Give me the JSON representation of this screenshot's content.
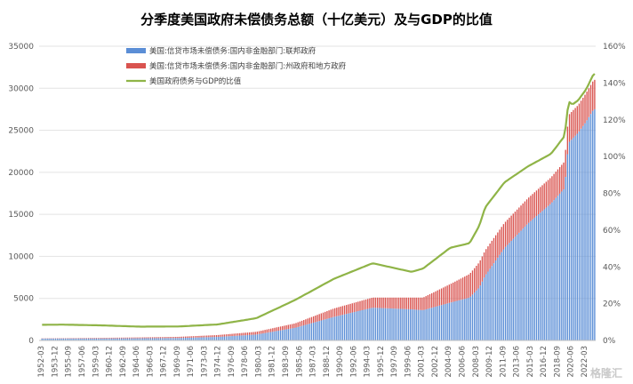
{
  "chart_data": {
    "type": "bar+line",
    "title": "分季度美国政府未偿债务总额（十亿美元）及与GDP的比值",
    "y_left": {
      "min": 0,
      "max": 35000,
      "ticks": [
        "0",
        "5000",
        "10000",
        "15000",
        "20000",
        "25000",
        "30000",
        "35000"
      ]
    },
    "y_right": {
      "min": 0,
      "max": 160,
      "unit": "%",
      "ticks": [
        "0%",
        "20%",
        "40%",
        "60%",
        "80%",
        "100%",
        "120%",
        "140%",
        "160%"
      ]
    },
    "x_tick_labels": [
      "1952-03",
      "1953-12",
      "1955-09",
      "1957-06",
      "1959-03",
      "1960-12",
      "1962-09",
      "1964-06",
      "1966-03",
      "1967-12",
      "1969-09",
      "1971-06",
      "1973-03",
      "1974-12",
      "1976-09",
      "1978-06",
      "1980-03",
      "1981-12",
      "1983-09",
      "1985-06",
      "1987-03",
      "1988-12",
      "1990-09",
      "1992-06",
      "1994-03",
      "1995-12",
      "1997-09",
      "1999-06",
      "2001-03",
      "2002-12",
      "2004-09",
      "2006-06",
      "2008-03",
      "2009-12",
      "2011-09",
      "2013-06",
      "2015-03",
      "2016-12",
      "2018-09",
      "2020-06",
      "2022-03"
    ],
    "legend": [
      {
        "label": "美国:信贷市场未偿债务:国内非金融部门:联邦政府",
        "color": "#5b8ed6",
        "kind": "bar"
      },
      {
        "label": "美国:信贷市场未偿债务:国内非金融部门:州政府和地方政府",
        "color": "#d9534f",
        "kind": "bar"
      },
      {
        "label": "美国政府债务与GDP的比值",
        "color": "#8fb447",
        "kind": "line"
      }
    ],
    "legend_position": "top-left",
    "anchors": {
      "x": [
        1952.25,
        1955,
        1960,
        1965,
        1970,
        1975,
        1980,
        1985,
        1990,
        1995,
        2000,
        2001.5,
        2005,
        2007.5,
        2008.75,
        2009.5,
        2012,
        2015,
        2018,
        2019.75,
        2020.25,
        2020.75,
        2021.5,
        2022.5,
        2023.5
      ],
      "federal": [
        220,
        230,
        240,
        260,
        290,
        420,
        700,
        1500,
        2800,
        3900,
        3700,
        3600,
        4500,
        5100,
        6300,
        7700,
        11000,
        13900,
        16300,
        18100,
        23500,
        24000,
        24700,
        26000,
        27500
      ],
      "state_local": [
        30,
        40,
        70,
        100,
        140,
        220,
        330,
        530,
        1000,
        1200,
        1400,
        1500,
        2200,
        2800,
        3000,
        3000,
        3000,
        3000,
        3100,
        3200,
        3300,
        3300,
        3300,
        3400,
        3500
      ],
      "ratio": [
        8.5,
        8.6,
        8.2,
        7.5,
        7.6,
        8.7,
        12.1,
        22.0,
        33.5,
        42.0,
        37.3,
        39.1,
        50.4,
        52.9,
        62.4,
        72.3,
        86.0,
        94.6,
        101.5,
        111.2,
        130.0,
        128.3,
        130.6,
        136.4,
        145.0
      ]
    }
  }
}
